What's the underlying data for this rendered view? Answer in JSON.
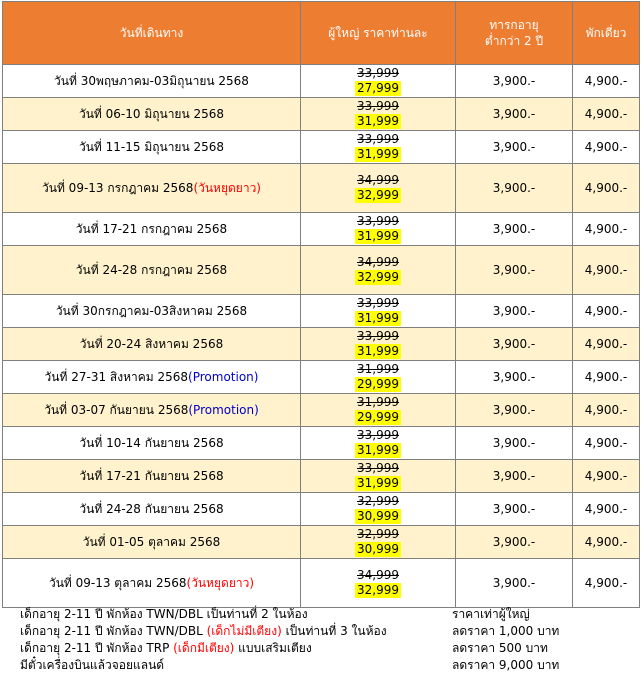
{
  "header": {
    "date_col": "วันที่เดินทาง",
    "adult_col": "ผู้ใหญ่ ราคาท่านละ",
    "infant_col_line1": "ทารกอายุ",
    "infant_col_line2": "ต่ำกว่า 2 ปี",
    "single_col": "พักเดี่ยว"
  },
  "rows": [
    {
      "date": "วันที่ 30พฤษภาคม-03มิถุนายน 2568",
      "note": "",
      "old": "33,999",
      "new": "27,999",
      "infant": "3,900.-",
      "single": "4,900.-"
    },
    {
      "date": "วันที่ 06-10 มิถุนายน 2568",
      "note": "",
      "old": "33,999",
      "new": "31,999",
      "infant": "3,900.-",
      "single": "4,900.-"
    },
    {
      "date": "วันที่ 11-15 มิถุนายน 2568",
      "note": "",
      "old": "33,999",
      "new": "31,999",
      "infant": "3,900.-",
      "single": "4,900.-"
    },
    {
      "date": "วันที่ 09-13 กรกฎาคม 2568",
      "note": "(วันหยุดยาว)",
      "note_type": "red",
      "old": "34,999",
      "new": "32,999",
      "infant": "3,900.-",
      "single": "4,900.-"
    },
    {
      "date": "วันที่ 17-21 กรกฎาคม 2568",
      "note": "",
      "old": "33,999",
      "new": "31,999",
      "infant": "3,900.-",
      "single": "4,900.-"
    },
    {
      "date": "วันที่ 24-28 กรกฎาคม 2568",
      "note": "",
      "old": "34,999",
      "new": "32,999",
      "infant": "3,900.-",
      "single": "4,900.-"
    },
    {
      "date": "วันที่ 30กรกฎาคม-03สิงหาคม 2568",
      "note": "",
      "old": "33,999",
      "new": "31,999",
      "infant": "3,900.-",
      "single": "4,900.-"
    },
    {
      "date": "วันที่ 20-24 สิงหาคม 2568",
      "note": "",
      "old": "33,999",
      "new": "31,999",
      "infant": "3,900.-",
      "single": "4,900.-"
    },
    {
      "date": "วันที่ 27-31 สิงหาคม 2568",
      "note": "(Promotion)",
      "note_type": "blue",
      "old": "31,999",
      "new": "29,999",
      "infant": "3,900.-",
      "single": "4,900.-"
    },
    {
      "date": "วันที่ 03-07 กันยายน 2568",
      "note": "(Promotion)",
      "note_type": "blue",
      "old": "31,999",
      "new": "29,999",
      "infant": "3,900.-",
      "single": "4,900.-"
    },
    {
      "date": "วันที่ 10-14 กันยายน 2568",
      "note": "",
      "old": "33,999",
      "new": "31,999",
      "infant": "3,900.-",
      "single": "4,900.-"
    },
    {
      "date": "วันที่ 17-21 กันยายน 2568",
      "note": "",
      "old": "33,999",
      "new": "31,999",
      "infant": "3,900.-",
      "single": "4,900.-"
    },
    {
      "date": "วันที่ 24-28 กันยายน 2568",
      "note": "",
      "old": "32,999",
      "new": "30,999",
      "infant": "3,900.-",
      "single": "4,900.-"
    },
    {
      "date": "วันที่ 01-05 ตุลาคม 2568",
      "note": "",
      "old": "32,999",
      "new": "30,999",
      "infant": "3,900.-",
      "single": "4,900.-"
    },
    {
      "date": "วันที่ 09-13 ตุลาคม 2568",
      "note": "(วันหยุดยาว)",
      "note_type": "red",
      "old": "34,999",
      "new": "32,999",
      "infant": "3,900.-",
      "single": "4,900.-"
    }
  ],
  "footer": [
    {
      "left_a": "เด็กอายุ 2-11 ปี พักห้อง TWN/DBL เป็นท่านที่ 2 ในห้อง",
      "left_red": "",
      "left_b": "",
      "right": "ราคาเท่าผู้ใหญ่"
    },
    {
      "left_a": "เด็กอายุ 2-11 ปี พักห้อง TWN/DBL ",
      "left_red": "(เด็กไม่มีเตียง)",
      "left_b": " เป็นท่านที่ 3 ในห้อง",
      "right": "ลดราคา 1,000 บาท"
    },
    {
      "left_a": "เด็กอายุ 2-11 ปี พักห้อง TRP ",
      "left_red": "(เด็กมีเตียง)",
      "left_b": "  แบบเสริมเตียง",
      "right": "ลดราคา   500 บาท"
    },
    {
      "left_a": "มีตั๋วเครื่องบินแล้วจอยแลนด์",
      "left_red": "",
      "left_b": "",
      "right": "ลดราคา 9,000 บาท"
    }
  ]
}
